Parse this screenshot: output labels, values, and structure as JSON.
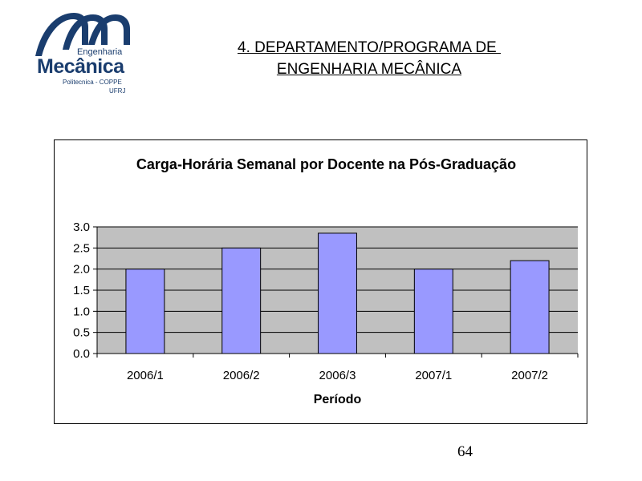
{
  "header": {
    "logo": {
      "top_text": "Engenharia",
      "main_text": "Mecânica",
      "sub_line1": "Politecnica - COPPE",
      "sub_line2": "UFRJ",
      "color": "#1a3d6e"
    },
    "title_line1": "4. DEPARTAMENTO/PROGRAMA DE ",
    "title_line2": "ENGENHARIA MECÂNICA"
  },
  "chart_data": {
    "type": "bar",
    "title": "Carga-Horária Semanal por Docente na Pós-Graduação",
    "xlabel": "Período",
    "ylabel": "",
    "categories": [
      "2006/1",
      "2006/2",
      "2006/3",
      "2007/1",
      "2007/2"
    ],
    "values": [
      2.0,
      2.5,
      2.85,
      2.0,
      2.2
    ],
    "ylim": [
      0,
      3.0
    ],
    "yticks": [
      "0.0",
      "0.5",
      "1.0",
      "1.5",
      "2.0",
      "2.5",
      "3.0"
    ],
    "grid": true,
    "legend": "none",
    "bar_color": "#9999ff",
    "plot_background": "#c0c0c0"
  },
  "footer": {
    "page_number": "64"
  }
}
